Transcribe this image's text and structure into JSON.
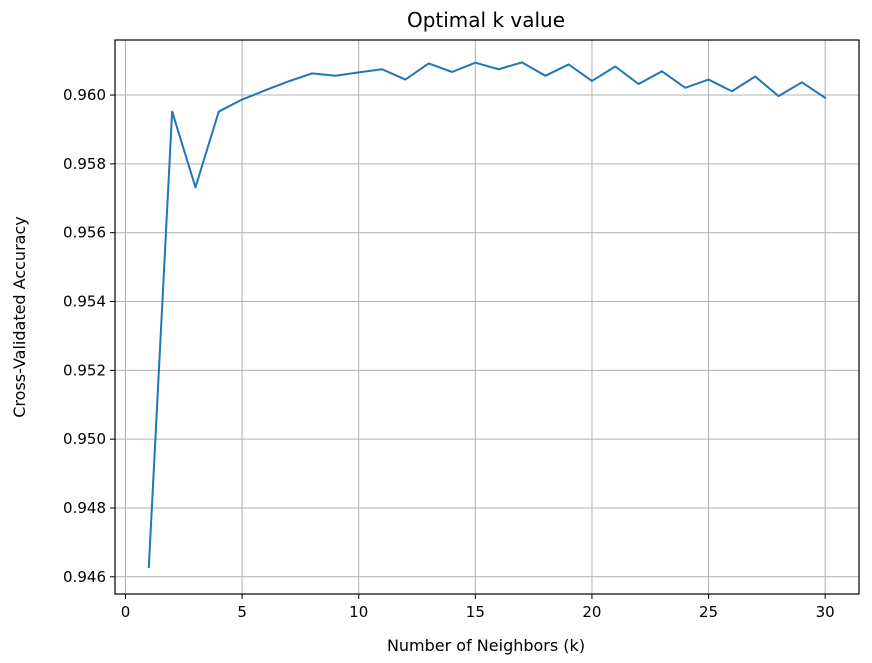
{
  "chart_data": {
    "type": "line",
    "title": "Optimal k value",
    "xlabel": "Number of Neighbors (k)",
    "ylabel": "Cross-Validated Accuracy",
    "xlim": [
      -0.45,
      31.45
    ],
    "ylim": [
      0.9455,
      0.9616
    ],
    "xticks": [
      0,
      5,
      10,
      15,
      20,
      25,
      30
    ],
    "xtick_labels": [
      "0",
      "5",
      "10",
      "15",
      "20",
      "25",
      "30"
    ],
    "yticks": [
      0.946,
      0.948,
      0.95,
      0.952,
      0.954,
      0.956,
      0.958,
      0.96
    ],
    "ytick_labels": [
      "0.946",
      "0.948",
      "0.950",
      "0.952",
      "0.954",
      "0.956",
      "0.958",
      "0.960"
    ],
    "grid": true,
    "color": "#1f77b4",
    "x": [
      1,
      2,
      3,
      4,
      5,
      6,
      7,
      8,
      9,
      10,
      11,
      12,
      13,
      14,
      15,
      16,
      17,
      18,
      19,
      20,
      21,
      22,
      23,
      24,
      25,
      26,
      27,
      28,
      29,
      30
    ],
    "y": [
      0.94628,
      0.95952,
      0.95732,
      0.95952,
      0.95987,
      0.96014,
      0.9604,
      0.96063,
      0.96056,
      0.96066,
      0.96075,
      0.96045,
      0.96092,
      0.96067,
      0.96094,
      0.96075,
      0.96095,
      0.96056,
      0.96089,
      0.96041,
      0.96083,
      0.96032,
      0.96069,
      0.96021,
      0.96045,
      0.96011,
      0.96054,
      0.95997,
      0.96037,
      0.95992
    ]
  }
}
